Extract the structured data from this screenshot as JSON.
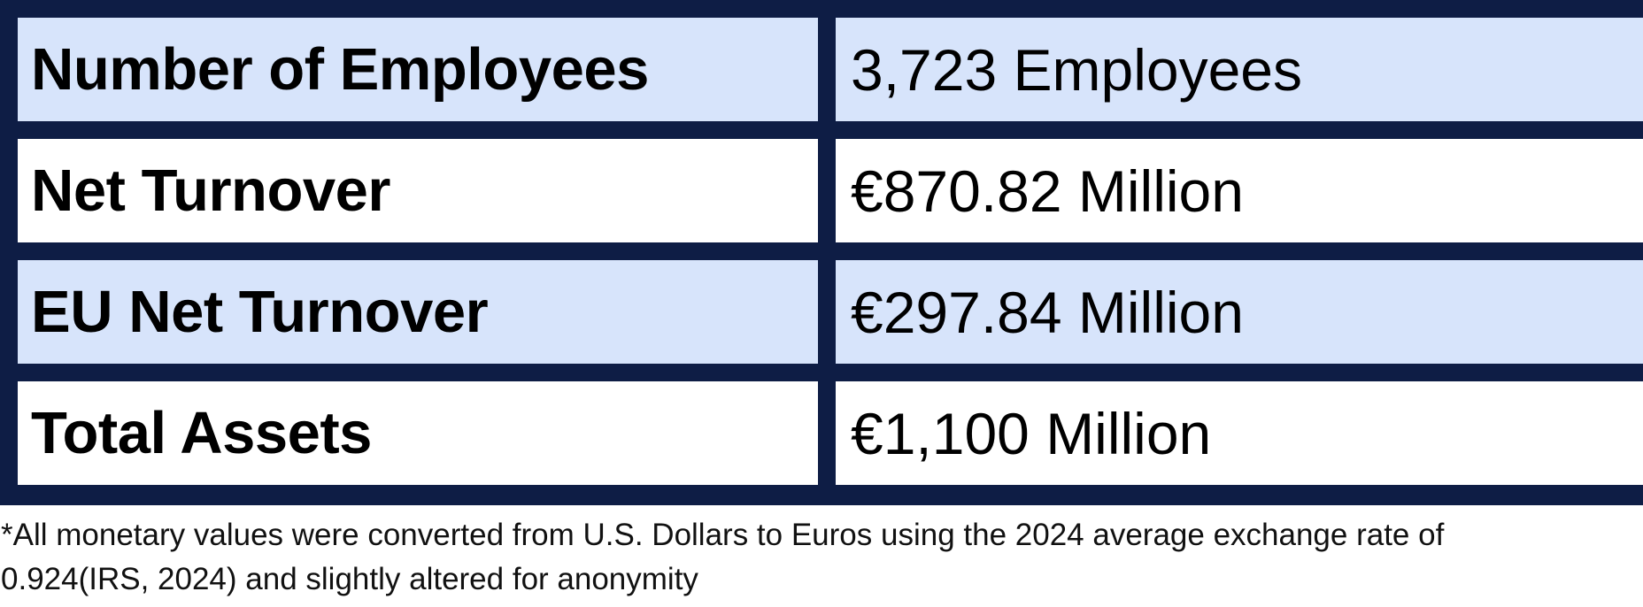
{
  "table": {
    "rows": [
      {
        "label": "Number of Employees",
        "value": "3,723 Employees"
      },
      {
        "label": "Net Turnover",
        "value": "€870.82 Million"
      },
      {
        "label": "EU Net Turnover",
        "value": "€297.84 Million"
      },
      {
        "label": "Total Assets",
        "value": "€1,100 Million"
      }
    ],
    "colors": {
      "border": "#0e1d45",
      "shaded_row": "#d7e4fb",
      "plain_row": "#ffffff"
    }
  },
  "footnote": {
    "line1": "*All monetary values were converted from U.S. Dollars to Euros using the 2024 average exchange rate of",
    "line2": "0.924(IRS, 2024) and slightly altered for anonymity"
  }
}
